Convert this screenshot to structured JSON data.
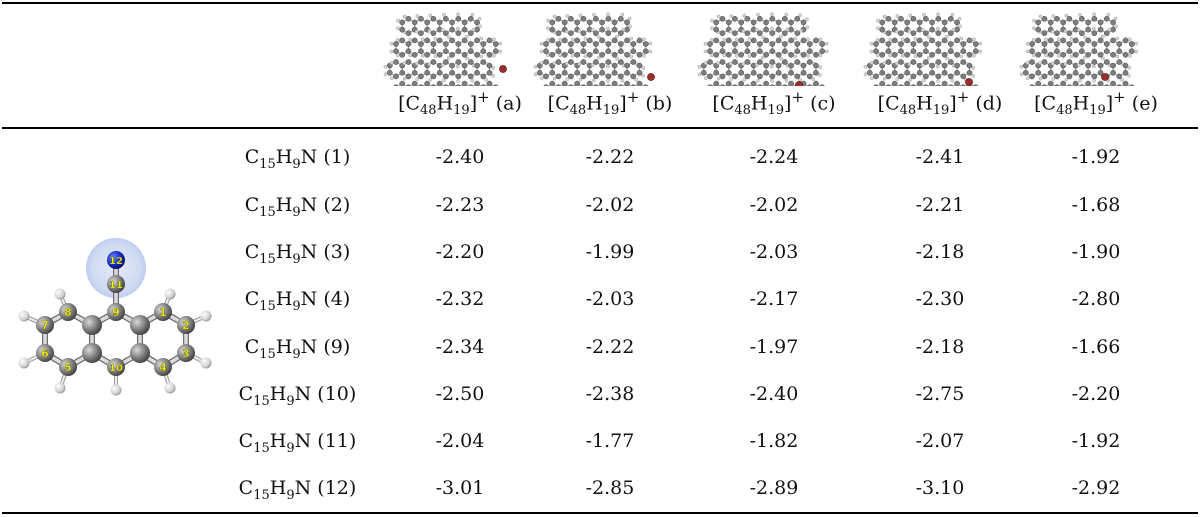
{
  "columns": [
    {
      "formula_main": "[C",
      "sub1": "48",
      "mid": "H",
      "sub2": "19",
      "close": "]",
      "charge": "+",
      "tag": "(a)"
    },
    {
      "formula_main": "[C",
      "sub1": "48",
      "mid": "H",
      "sub2": "19",
      "close": "]",
      "charge": "+",
      "tag": "(b)"
    },
    {
      "formula_main": "[C",
      "sub1": "48",
      "mid": "H",
      "sub2": "19",
      "close": "]",
      "charge": "+",
      "tag": "(c)"
    },
    {
      "formula_main": "[C",
      "sub1": "48",
      "mid": "H",
      "sub2": "19",
      "close": "]",
      "charge": "+",
      "tag": "(d)"
    },
    {
      "formula_main": "[C",
      "sub1": "48",
      "mid": "H",
      "sub2": "19",
      "close": "]",
      "charge": "+",
      "tag": "(e)"
    }
  ],
  "rows": [
    {
      "label": {
        "c": "C",
        "cs": "15",
        "h": "H",
        "hs": "9",
        "n": "N",
        "site": "(1)"
      },
      "values": [
        "-2.40",
        "-2.22",
        "-2.24",
        "-2.41",
        "-1.92"
      ]
    },
    {
      "label": {
        "c": "C",
        "cs": "15",
        "h": "H",
        "hs": "9",
        "n": "N",
        "site": "(2)"
      },
      "values": [
        "-2.23",
        "-2.02",
        "-2.02",
        "-2.21",
        "-1.68"
      ]
    },
    {
      "label": {
        "c": "C",
        "cs": "15",
        "h": "H",
        "hs": "9",
        "n": "N",
        "site": "(3)"
      },
      "values": [
        "-2.20",
        "-1.99",
        "-2.03",
        "-2.18",
        "-1.90"
      ]
    },
    {
      "label": {
        "c": "C",
        "cs": "15",
        "h": "H",
        "hs": "9",
        "n": "N",
        "site": "(4)"
      },
      "values": [
        "-2.32",
        "-2.03",
        "-2.17",
        "-2.30",
        "-2.80"
      ]
    },
    {
      "label": {
        "c": "C",
        "cs": "15",
        "h": "H",
        "hs": "9",
        "n": "N",
        "site": "(9)"
      },
      "values": [
        "-2.34",
        "-2.22",
        "-1.97",
        "-2.18",
        "-1.66"
      ]
    },
    {
      "label": {
        "c": "C",
        "cs": "15",
        "h": "H",
        "hs": "9",
        "n": "N",
        "site": "(10)"
      },
      "values": [
        "-2.50",
        "-2.38",
        "-2.40",
        "-2.75",
        "-2.20"
      ]
    },
    {
      "label": {
        "c": "C",
        "cs": "15",
        "h": "H",
        "hs": "9",
        "n": "N",
        "site": "(11)"
      },
      "values": [
        "-2.04",
        "-1.77",
        "-1.82",
        "-2.07",
        "-1.92"
      ]
    },
    {
      "label": {
        "c": "C",
        "cs": "15",
        "h": "H",
        "hs": "9",
        "n": "N",
        "site": "(12)"
      },
      "values": [
        "-3.01",
        "-2.85",
        "-2.89",
        "-3.10",
        "-2.92"
      ]
    }
  ],
  "molecule_atom_labels": [
    "1",
    "2",
    "3",
    "4",
    "5",
    "6",
    "7",
    "8",
    "9",
    "10",
    "11",
    "12"
  ],
  "colors": {
    "carbon": "#8c8c8c",
    "hydrogen": "#e6e6e6",
    "nitrogen": "#1428c8",
    "dopant": "#9a2f2a",
    "label": "#f4f400",
    "halo": "#c9d6f2"
  }
}
